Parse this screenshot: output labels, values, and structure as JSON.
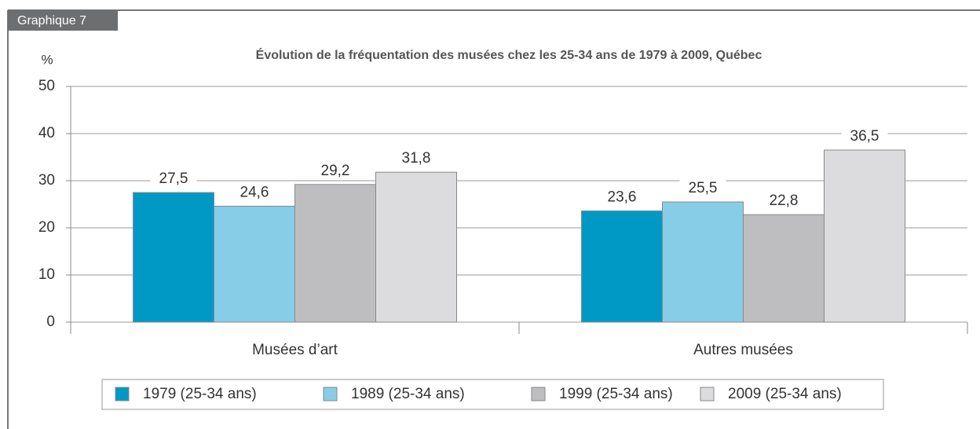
{
  "chart_data": {
    "type": "bar",
    "figure_label": "Graphique 7",
    "title": "Évolution de la fréquentation des musées chez les 25-34 ans de 1979 à 2009, Québec",
    "ylabel": "%",
    "categories": [
      "Musées d’art",
      "Autres musées"
    ],
    "series": [
      {
        "name": "1979 (25-34 ans)",
        "color": "#0099c6",
        "values": [
          27.5,
          23.6
        ],
        "value_labels": [
          "27,5",
          "23,6"
        ]
      },
      {
        "name": "1989 (25-34 ans)",
        "color": "#87cde8",
        "values": [
          24.6,
          25.5
        ],
        "value_labels": [
          "24,6",
          "25,5"
        ]
      },
      {
        "name": "1999 (25-34 ans)",
        "color": "#bebec0",
        "values": [
          29.2,
          22.8
        ],
        "value_labels": [
          "29,2",
          "22,8"
        ]
      },
      {
        "name": "2009 (25-34 ans)",
        "color": "#dcdcde",
        "values": [
          31.8,
          36.5
        ],
        "value_labels": [
          "31,8",
          "36,5"
        ]
      }
    ],
    "ylim": [
      0,
      50
    ],
    "yticks": [
      0,
      10,
      20,
      30,
      40,
      50
    ],
    "grid": true,
    "legend": "bottom"
  }
}
